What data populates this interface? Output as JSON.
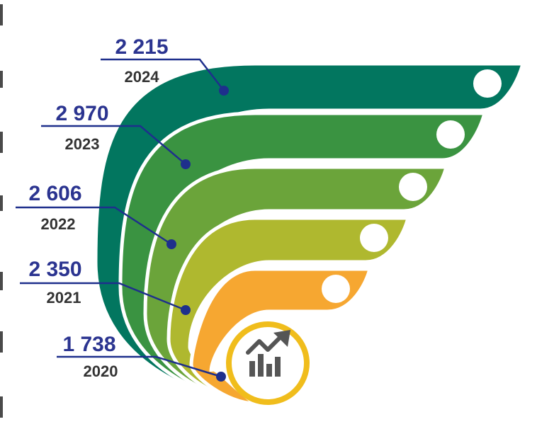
{
  "chart_data": {
    "type": "bar",
    "categories": [
      "2024",
      "2023",
      "2022",
      "2021",
      "2020"
    ],
    "values": [
      2215,
      2970,
      2606,
      2350,
      1738
    ],
    "value_labels": [
      "2 215",
      "2 970",
      "2 606",
      "2 350",
      "1 738"
    ],
    "title": "",
    "xlabel": "",
    "ylabel": "",
    "colors": [
      "#02765f",
      "#3a9341",
      "#6ba43a",
      "#afb82f",
      "#f6a731"
    ],
    "center_ring_color": "#f0bd1c",
    "label_color": "#2b3490",
    "year_color": "#333333",
    "icon": "growth-chart-icon"
  }
}
